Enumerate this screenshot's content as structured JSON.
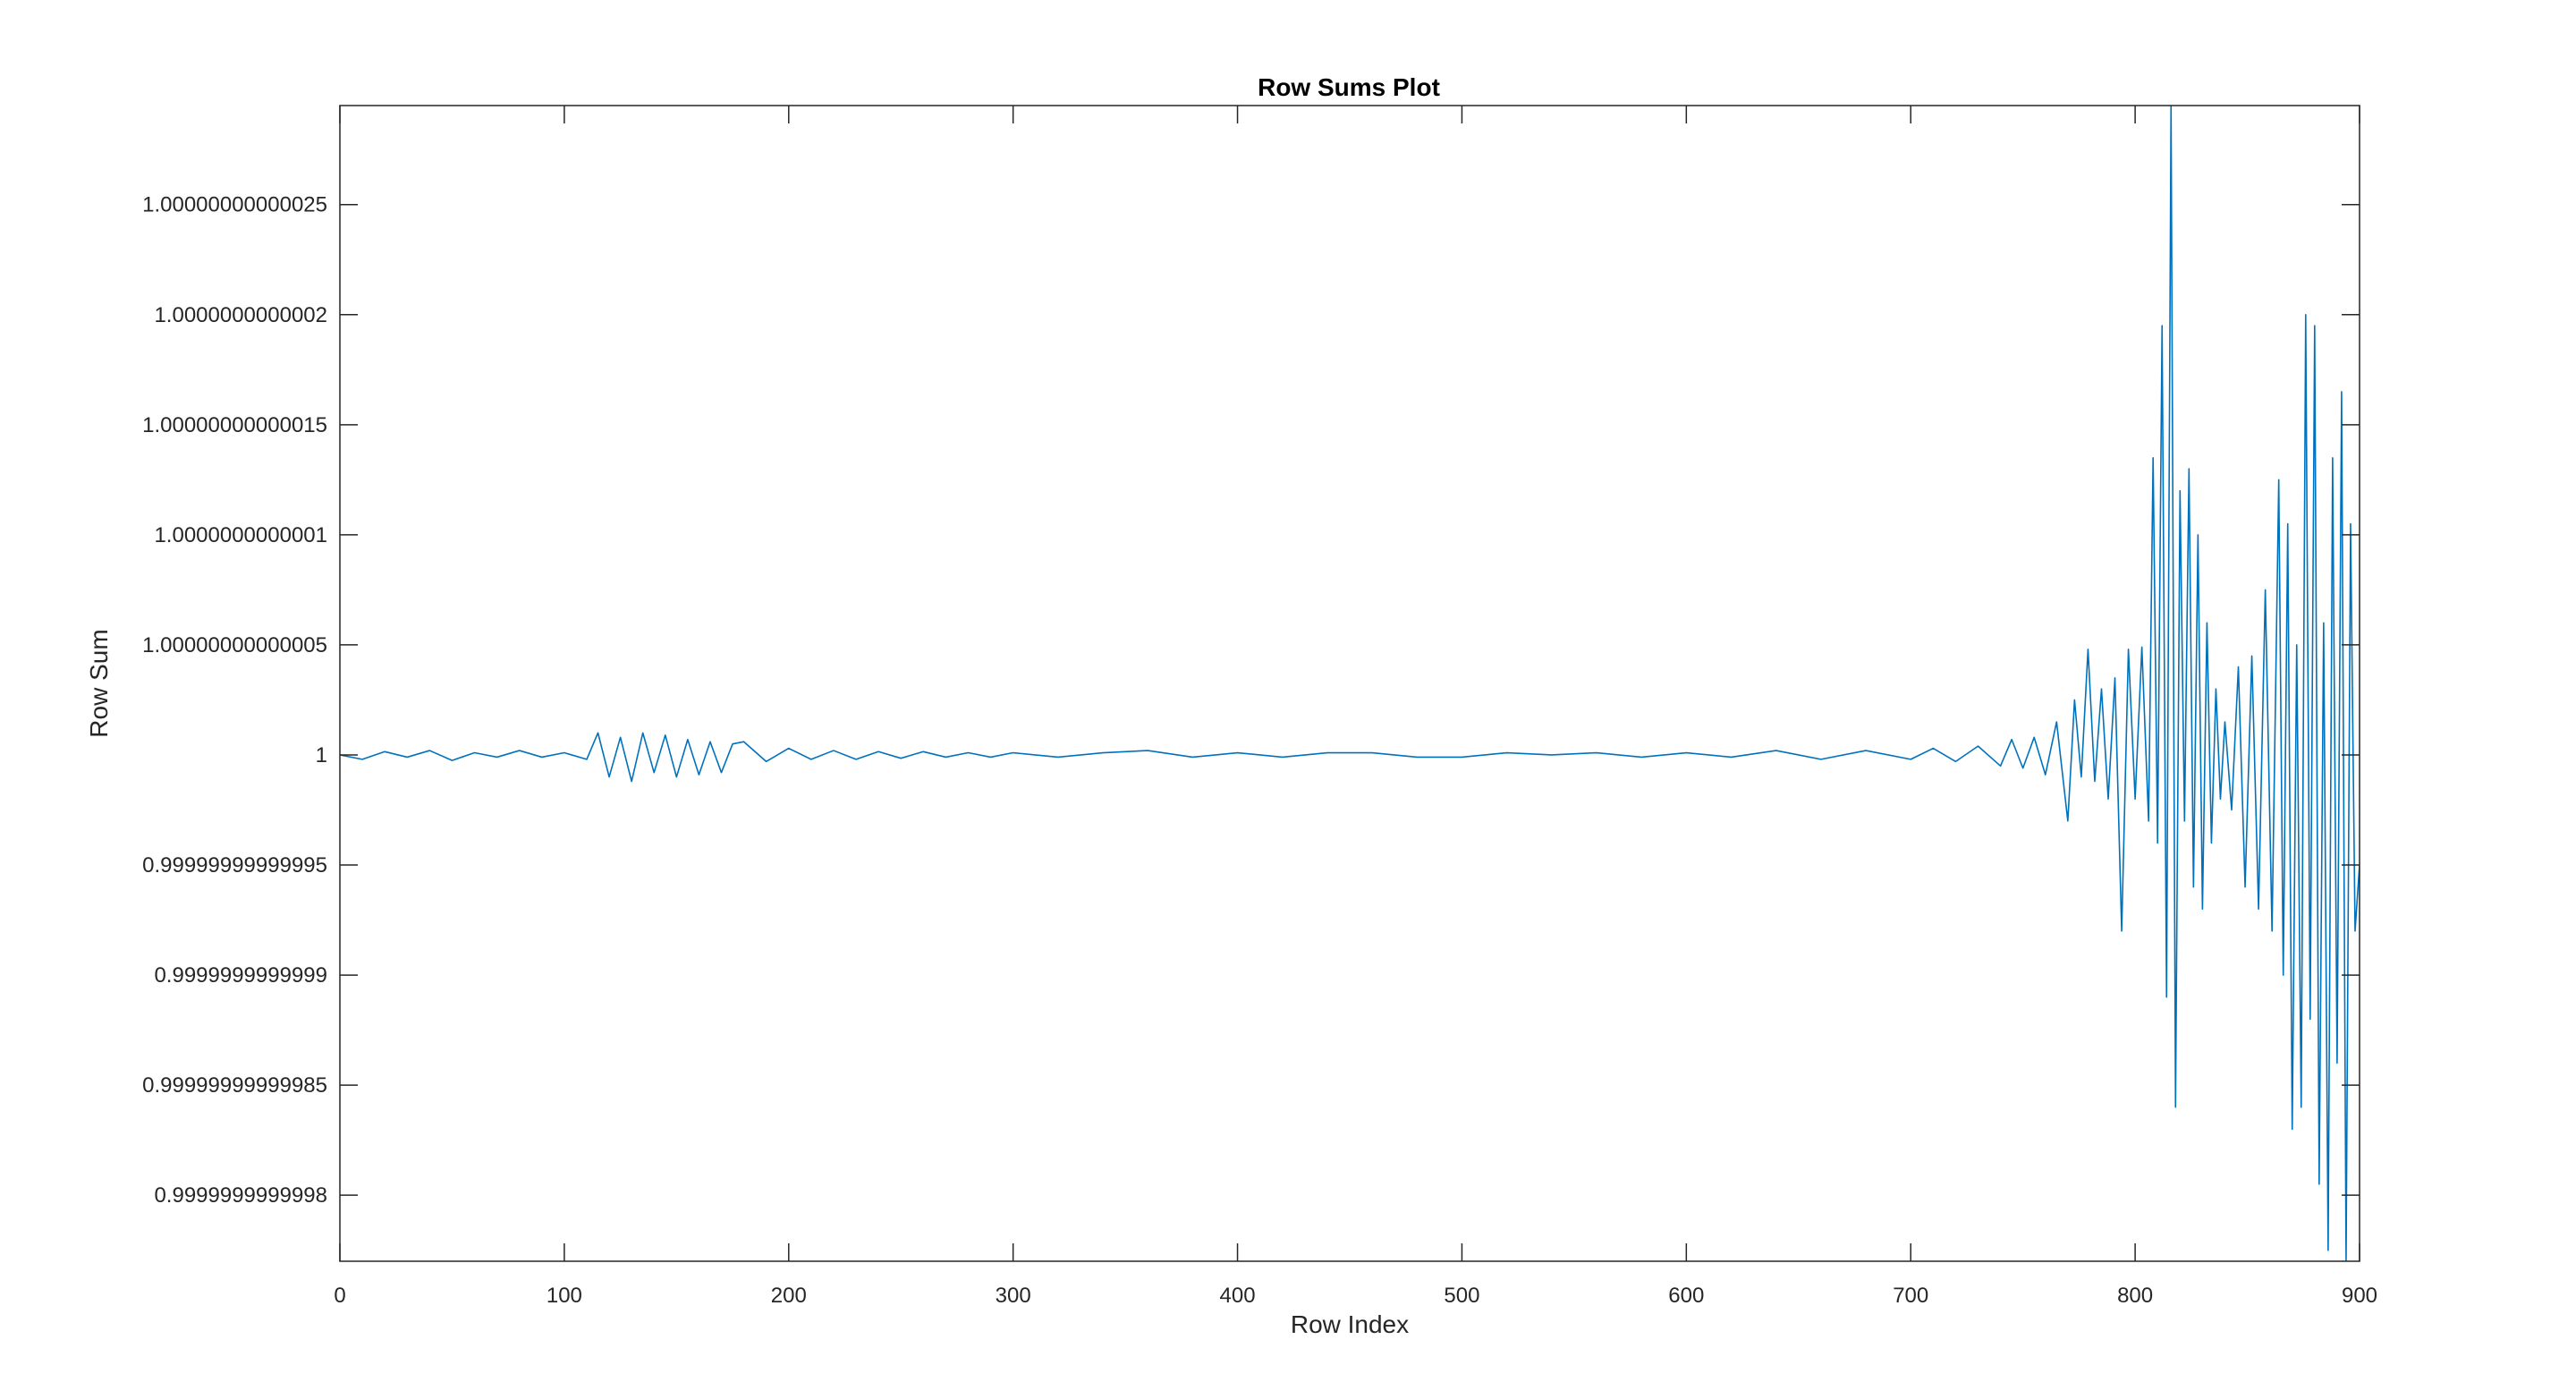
{
  "colors": {
    "background": "#ffffff",
    "axes": "#262626",
    "line": "#0072BD"
  },
  "chart_data": {
    "type": "line",
    "title": "Row Sums Plot",
    "xlabel": "Row Index",
    "ylabel": "Row Sum",
    "xlim": [
      0,
      900
    ],
    "ylim_offset_from_one": [
      -2.3e-13,
      2.95e-13
    ],
    "grid": false,
    "legend": "none",
    "x_ticks": [
      0,
      100,
      200,
      300,
      400,
      500,
      600,
      700,
      800,
      900
    ],
    "x_tick_labels": [
      "0",
      "100",
      "200",
      "300",
      "400",
      "500",
      "600",
      "700",
      "800",
      "900"
    ],
    "y_ticks_offset_from_one": [
      -2e-13,
      -1.5e-13,
      -1e-13,
      -5e-14,
      0,
      5e-14,
      1e-13,
      1.5e-13,
      2e-13,
      2.5e-13
    ],
    "y_tick_labels": [
      "0.9999999999998",
      "0.99999999999985",
      "0.9999999999999",
      "0.99999999999995",
      "1",
      "1.00000000000005",
      "1.0000000000001",
      "1.00000000000015",
      "1.0000000000002",
      "1.00000000000025"
    ],
    "series": [
      {
        "color": "#0072BD",
        "x": [
          0,
          10,
          20,
          30,
          40,
          50,
          60,
          70,
          80,
          90,
          100,
          110,
          115,
          120,
          125,
          130,
          135,
          140,
          145,
          150,
          155,
          160,
          165,
          170,
          175,
          180,
          190,
          200,
          210,
          220,
          230,
          240,
          250,
          260,
          270,
          280,
          290,
          300,
          320,
          340,
          360,
          380,
          400,
          420,
          440,
          460,
          480,
          500,
          520,
          540,
          560,
          580,
          600,
          620,
          640,
          660,
          680,
          700,
          710,
          720,
          730,
          740,
          745,
          750,
          755,
          760,
          765,
          770,
          773,
          776,
          779,
          782,
          785,
          788,
          791,
          794,
          797,
          800,
          803,
          806,
          808,
          810,
          812,
          814,
          816,
          818,
          820,
          822,
          824,
          826,
          828,
          830,
          832,
          834,
          836,
          838,
          840,
          843,
          846,
          849,
          852,
          855,
          858,
          861,
          864,
          866,
          868,
          870,
          872,
          874,
          876,
          878,
          880,
          882,
          884,
          886,
          888,
          890,
          892,
          894,
          896,
          898,
          900
        ],
        "y_offset_from_one": [
          0,
          -2e-15,
          1.5e-15,
          -1e-15,
          2e-15,
          -2.5e-15,
          1e-15,
          -1e-15,
          2e-15,
          -1e-15,
          1e-15,
          -2e-15,
          1e-14,
          -1e-14,
          8e-15,
          -1.2e-14,
          1e-14,
          -8e-15,
          9e-15,
          -1e-14,
          7e-15,
          -9e-15,
          6e-15,
          -8e-15,
          5e-15,
          6e-15,
          -3e-15,
          3e-15,
          -2e-15,
          2e-15,
          -2e-15,
          1.5e-15,
          -1.5e-15,
          1.5e-15,
          -1e-15,
          1e-15,
          -1e-15,
          1e-15,
          -1e-15,
          1e-15,
          2e-15,
          -1e-15,
          1e-15,
          -1e-15,
          1e-15,
          1e-15,
          -1e-15,
          -1e-15,
          1e-15,
          0,
          1e-15,
          -1e-15,
          1e-15,
          -1e-15,
          2e-15,
          -2e-15,
          2e-15,
          -2e-15,
          3e-15,
          -3e-15,
          4e-15,
          -5e-15,
          7e-15,
          -6e-15,
          8e-15,
          -9e-15,
          1.5e-14,
          -3e-14,
          2.5e-14,
          -1e-14,
          4.8e-14,
          -1.2e-14,
          3e-14,
          -2e-14,
          3.5e-14,
          -8e-14,
          4.8e-14,
          -2e-14,
          4.9e-14,
          -3e-14,
          1.35e-13,
          -4e-14,
          1.95e-13,
          -1.1e-13,
          2.95e-13,
          -1.6e-13,
          1.2e-13,
          -3e-14,
          1.3e-13,
          -6e-14,
          1e-13,
          -7e-14,
          6e-14,
          -4e-14,
          3e-14,
          -2e-14,
          1.5e-14,
          -2.5e-14,
          4e-14,
          -6e-14,
          4.5e-14,
          -7e-14,
          7.5e-14,
          -8e-14,
          1.25e-13,
          -1e-13,
          1.05e-13,
          -1.7e-13,
          5e-14,
          -1.6e-13,
          2e-13,
          -1.2e-13,
          1.95e-13,
          -1.95e-13,
          6e-14,
          -2.25e-13,
          1.35e-13,
          -1.4e-13,
          1.65e-13,
          -2.3e-13,
          1.05e-13,
          -8e-14,
          -5e-14
        ]
      }
    ]
  }
}
